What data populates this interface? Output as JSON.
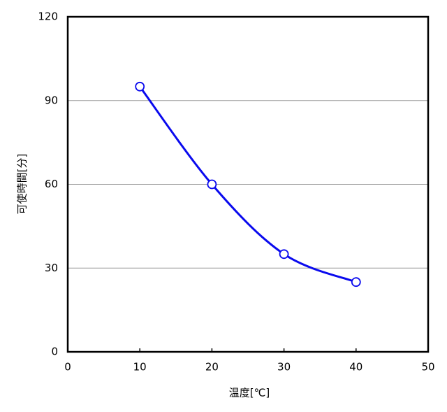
{
  "chart_data": {
    "type": "line",
    "xlabel": "温度[℃]",
    "ylabel": "可使時間[分]",
    "x": [
      10,
      20,
      30,
      40
    ],
    "series": [
      {
        "color": "#0a0aee",
        "values": [
          95,
          60,
          35,
          25
        ]
      }
    ],
    "xlim": [
      0,
      50
    ],
    "xticks": [
      0,
      10,
      20,
      30,
      40,
      50
    ],
    "ylim": [
      0,
      120
    ],
    "yticks": [
      0,
      30,
      60,
      90,
      120
    ],
    "grid": true,
    "smooth": true
  }
}
